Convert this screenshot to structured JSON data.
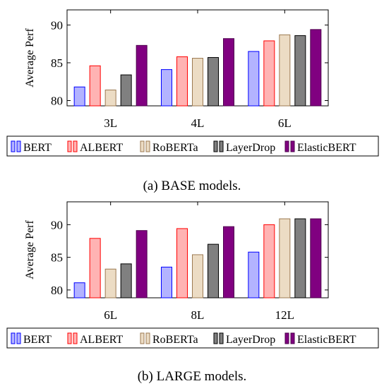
{
  "colors": {
    "BERT": {
      "fill": "#b3b3ff",
      "stroke": "#0000ff"
    },
    "ALBERT": {
      "fill": "#ffb3b3",
      "stroke": "#ff0000"
    },
    "RoBERTa": {
      "fill": "#ecdcc4",
      "stroke": "#9c7a52"
    },
    "LayerDrop": {
      "fill": "#808080",
      "stroke": "#000000"
    },
    "ElasticBERT": {
      "fill": "#800080",
      "stroke": "#4d004d"
    }
  },
  "chart_data": [
    {
      "type": "bar",
      "title": "",
      "xlabel": "",
      "ylabel": "Average Perf",
      "ylim": [
        79.3,
        92
      ],
      "yticks": [
        80,
        85,
        90
      ],
      "grid": false,
      "legend_position": "below",
      "categories": [
        "3L",
        "4L",
        "6L"
      ],
      "series": [
        {
          "name": "BERT",
          "values": [
            81.8,
            84.1,
            86.5
          ]
        },
        {
          "name": "ALBERT",
          "values": [
            84.6,
            85.8,
            87.9
          ]
        },
        {
          "name": "RoBERTa",
          "values": [
            81.4,
            85.6,
            88.7
          ]
        },
        {
          "name": "LayerDrop",
          "values": [
            83.4,
            85.7,
            88.6
          ]
        },
        {
          "name": "ElasticBERT",
          "values": [
            87.3,
            88.2,
            89.4
          ]
        }
      ],
      "caption": "(a) BASE models."
    },
    {
      "type": "bar",
      "title": "",
      "xlabel": "",
      "ylabel": "Average Perf",
      "ylim": [
        78.8,
        93.5
      ],
      "yticks": [
        80,
        85,
        90
      ],
      "grid": false,
      "legend_position": "below",
      "categories": [
        "6L",
        "8L",
        "12L"
      ],
      "series": [
        {
          "name": "BERT",
          "values": [
            81.1,
            83.5,
            85.8
          ]
        },
        {
          "name": "ALBERT",
          "values": [
            87.9,
            89.4,
            90.0
          ]
        },
        {
          "name": "RoBERTa",
          "values": [
            83.2,
            85.4,
            90.9
          ]
        },
        {
          "name": "LayerDrop",
          "values": [
            84.0,
            87.0,
            90.9
          ]
        },
        {
          "name": "ElasticBERT",
          "values": [
            89.1,
            89.7,
            90.9
          ]
        }
      ],
      "caption": "(b) LARGE models."
    }
  ]
}
